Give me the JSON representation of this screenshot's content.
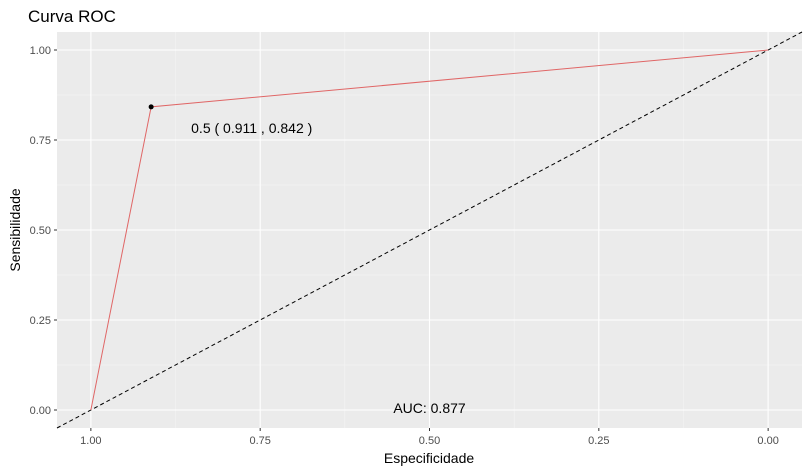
{
  "chart_data": {
    "type": "line",
    "title": "Curva ROC",
    "xlabel": "Especificidade",
    "ylabel": "Sensibilidade",
    "x_reversed": true,
    "xlim": [
      1.05,
      -0.05
    ],
    "ylim": [
      -0.05,
      1.05
    ],
    "x_ticks": [
      1.0,
      0.75,
      0.5,
      0.25,
      0.0
    ],
    "x_tick_labels": [
      "1.00",
      "0.75",
      "0.50",
      "0.25",
      "0.00"
    ],
    "y_ticks": [
      0.0,
      0.25,
      0.5,
      0.75,
      1.0
    ],
    "y_tick_labels": [
      "0.00",
      "0.25",
      "0.50",
      "0.75",
      "1.00"
    ],
    "grid": true,
    "series": [
      {
        "color": "#e06666",
        "x": [
          1.0,
          0.911,
          0.0
        ],
        "y": [
          0.0,
          0.842,
          1.0
        ]
      }
    ],
    "reference_line": {
      "style": "dashed",
      "color": "#000000",
      "from": [
        1.0,
        0.0
      ],
      "to": [
        0.0,
        1.0
      ]
    },
    "threshold_point": {
      "x": 0.911,
      "y": 0.842,
      "label": "0.5 ( 0.911 , 0.842 )"
    },
    "auc": {
      "label": "AUC:  0.877",
      "x": 0.5,
      "y": 0.0
    },
    "colors": {
      "panel_background": "#ebebeb",
      "grid_major": "#ffffff",
      "grid_minor": "#f5f5f5",
      "curve": "#e06666"
    }
  }
}
